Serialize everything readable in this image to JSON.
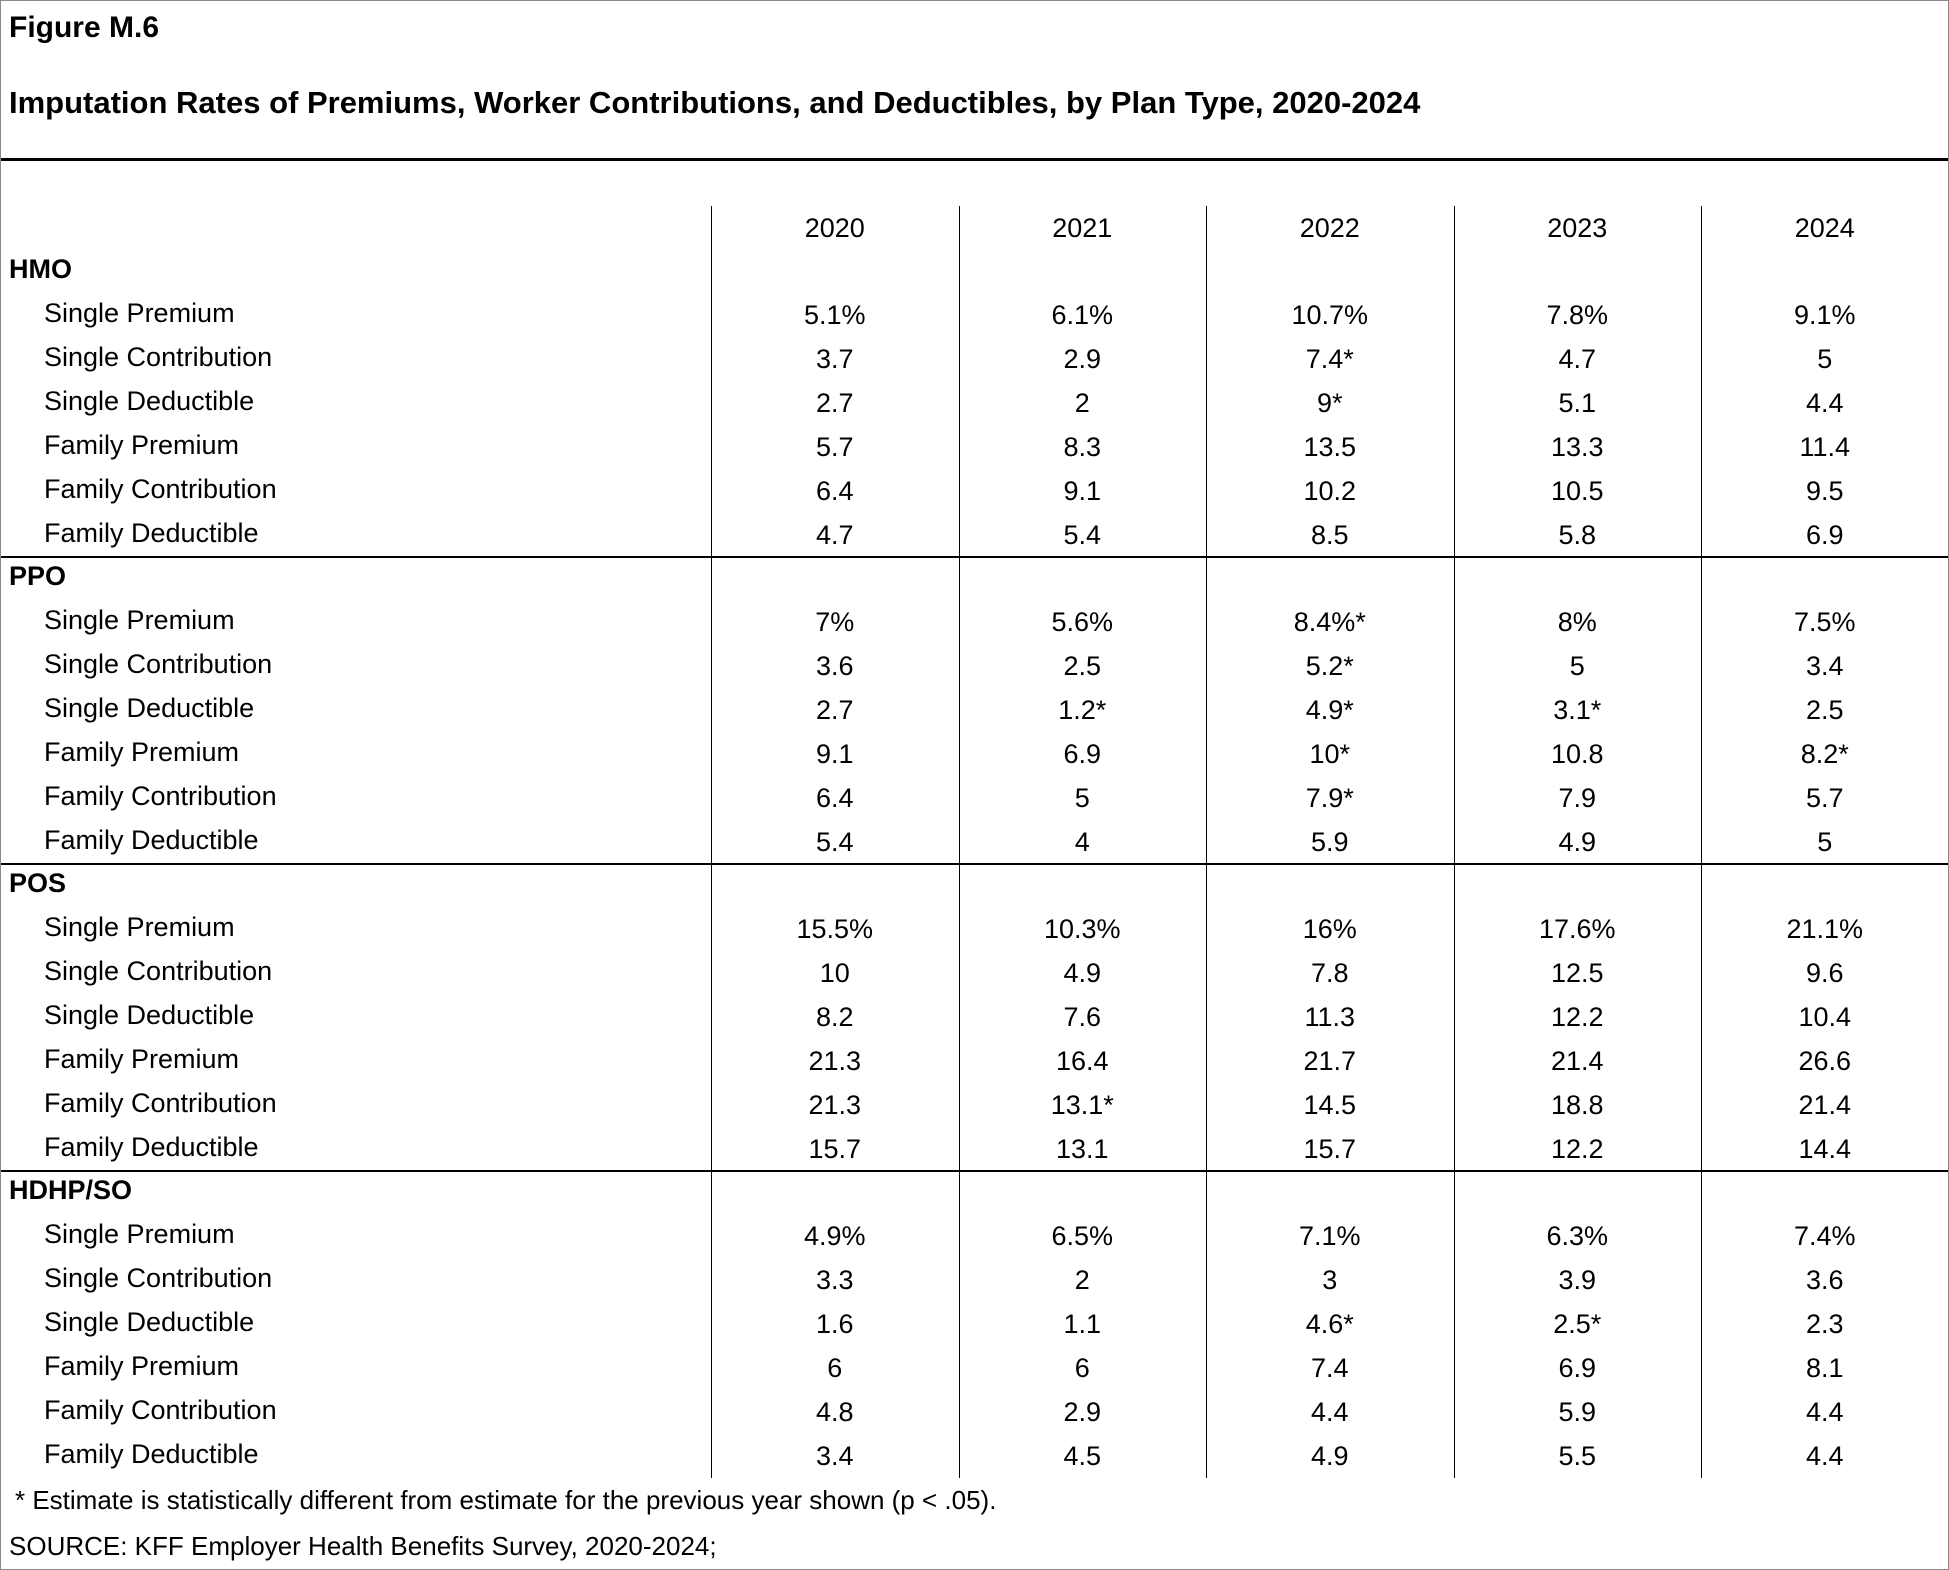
{
  "header": {
    "figure": "Figure M.6",
    "title": "Imputation Rates of Premiums, Worker Contributions, and Deductibles, by Plan Type, 2020-2024"
  },
  "table": {
    "columns": [
      "2020",
      "2021",
      "2022",
      "2023",
      "2024"
    ],
    "groups": [
      {
        "name": "HMO",
        "rows": [
          {
            "label": "Single Premium",
            "cells": [
              "5.1%",
              "6.1%",
              "10.7%",
              "7.8%",
              "9.1%"
            ]
          },
          {
            "label": "Single Contribution",
            "cells": [
              "3.7",
              "2.9",
              "7.4*",
              "4.7",
              "5"
            ]
          },
          {
            "label": "Single Deductible",
            "cells": [
              "2.7",
              "2",
              "9*",
              "5.1",
              "4.4"
            ]
          },
          {
            "label": "Family Premium",
            "cells": [
              "5.7",
              "8.3",
              "13.5",
              "13.3",
              "11.4"
            ]
          },
          {
            "label": "Family Contribution",
            "cells": [
              "6.4",
              "9.1",
              "10.2",
              "10.5",
              "9.5"
            ]
          },
          {
            "label": "Family Deductible",
            "cells": [
              "4.7",
              "5.4",
              "8.5",
              "5.8",
              "6.9"
            ]
          }
        ]
      },
      {
        "name": "PPO",
        "rows": [
          {
            "label": "Single Premium",
            "cells": [
              "7%",
              "5.6%",
              "8.4%*",
              "8%",
              "7.5%"
            ]
          },
          {
            "label": "Single Contribution",
            "cells": [
              "3.6",
              "2.5",
              "5.2*",
              "5",
              "3.4"
            ]
          },
          {
            "label": "Single Deductible",
            "cells": [
              "2.7",
              "1.2*",
              "4.9*",
              "3.1*",
              "2.5"
            ]
          },
          {
            "label": "Family Premium",
            "cells": [
              "9.1",
              "6.9",
              "10*",
              "10.8",
              "8.2*"
            ]
          },
          {
            "label": "Family Contribution",
            "cells": [
              "6.4",
              "5",
              "7.9*",
              "7.9",
              "5.7"
            ]
          },
          {
            "label": "Family Deductible",
            "cells": [
              "5.4",
              "4",
              "5.9",
              "4.9",
              "5"
            ]
          }
        ]
      },
      {
        "name": "POS",
        "rows": [
          {
            "label": "Single Premium",
            "cells": [
              "15.5%",
              "10.3%",
              "16%",
              "17.6%",
              "21.1%"
            ]
          },
          {
            "label": "Single Contribution",
            "cells": [
              "10",
              "4.9",
              "7.8",
              "12.5",
              "9.6"
            ]
          },
          {
            "label": "Single Deductible",
            "cells": [
              "8.2",
              "7.6",
              "11.3",
              "12.2",
              "10.4"
            ]
          },
          {
            "label": "Family Premium",
            "cells": [
              "21.3",
              "16.4",
              "21.7",
              "21.4",
              "26.6"
            ]
          },
          {
            "label": "Family Contribution",
            "cells": [
              "21.3",
              "13.1*",
              "14.5",
              "18.8",
              "21.4"
            ]
          },
          {
            "label": "Family Deductible",
            "cells": [
              "15.7",
              "13.1",
              "15.7",
              "12.2",
              "14.4"
            ]
          }
        ]
      },
      {
        "name": "HDHP/SO",
        "rows": [
          {
            "label": "Single Premium",
            "cells": [
              "4.9%",
              "6.5%",
              "7.1%",
              "6.3%",
              "7.4%"
            ]
          },
          {
            "label": "Single Contribution",
            "cells": [
              "3.3",
              "2",
              "3",
              "3.9",
              "3.6"
            ]
          },
          {
            "label": "Single Deductible",
            "cells": [
              "1.6",
              "1.1",
              "4.6*",
              "2.5*",
              "2.3"
            ]
          },
          {
            "label": "Family Premium",
            "cells": [
              "6",
              "6",
              "7.4",
              "6.9",
              "8.1"
            ]
          },
          {
            "label": "Family Contribution",
            "cells": [
              "4.8",
              "2.9",
              "4.4",
              "5.9",
              "4.4"
            ]
          },
          {
            "label": "Family Deductible",
            "cells": [
              "3.4",
              "4.5",
              "4.9",
              "5.5",
              "4.4"
            ]
          }
        ]
      }
    ]
  },
  "footnote": "* Estimate is statistically different from estimate for the previous year shown (p < .05).",
  "source": "SOURCE: KFF Employer Health Benefits Survey, 2020-2024;"
}
